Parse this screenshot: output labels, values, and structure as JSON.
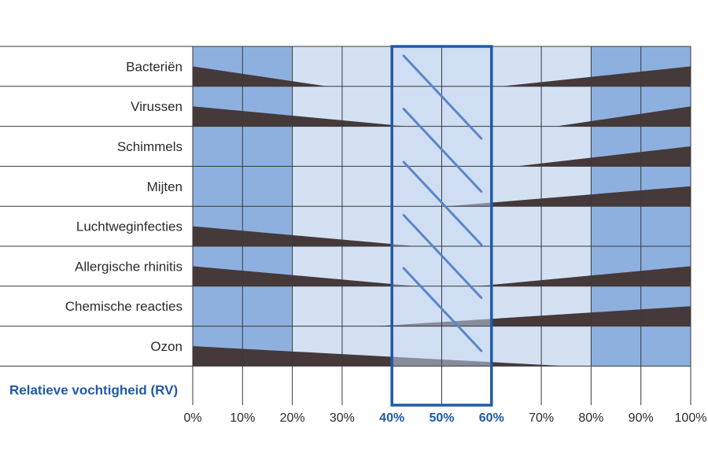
{
  "chart_data": {
    "type": "heatmap",
    "xlabel": "Relatieve vochtigheid (RV)",
    "x_ticks": [
      "0%",
      "10%",
      "20%",
      "30%",
      "40%",
      "50%",
      "60%",
      "70%",
      "80%",
      "90%",
      "100%"
    ],
    "x_range": [
      0,
      100
    ],
    "optimal_zone": [
      40,
      60
    ],
    "colors": {
      "dark_band": "#8eb0df",
      "light_band": "#d3e1f3",
      "optimal_band": "#e4edf8",
      "wedge": "#45393a",
      "highlight": "#1f5aa6",
      "hatch": "#5a86c8",
      "grid": "#3a3a3a"
    },
    "band_rule": "columns below 20% and above 80% dark; 20–80% light; optimal zone lightest",
    "rows": [
      {
        "label": "Bacteriën",
        "wedges": [
          {
            "x0": 0,
            "x1": 27,
            "side": "left"
          },
          {
            "x0": 62,
            "x1": 100,
            "side": "right"
          }
        ]
      },
      {
        "label": "Virussen",
        "wedges": [
          {
            "x0": 0,
            "x1": 43,
            "side": "left"
          },
          {
            "x0": 73,
            "x1": 100,
            "side": "right"
          }
        ]
      },
      {
        "label": "Schimmels",
        "wedges": [
          {
            "x0": 65,
            "x1": 100,
            "side": "right"
          }
        ]
      },
      {
        "label": "Mijten",
        "wedges": [
          {
            "x0": 51,
            "x1": 100,
            "side": "right"
          }
        ]
      },
      {
        "label": "Luchtweginfecties",
        "wedges": [
          {
            "x0": 0,
            "x1": 45,
            "side": "left"
          }
        ]
      },
      {
        "label": "Allergische rhinitis",
        "wedges": [
          {
            "x0": 0,
            "x1": 45,
            "side": "left"
          },
          {
            "x0": 57,
            "x1": 100,
            "side": "right"
          }
        ]
      },
      {
        "label": "Chemische reacties",
        "wedges": [
          {
            "x0": 37,
            "x1": 100,
            "side": "right"
          }
        ]
      },
      {
        "label": "Ozon",
        "wedges": [
          {
            "x0": 0,
            "x1": 75,
            "side": "left"
          }
        ]
      }
    ]
  }
}
